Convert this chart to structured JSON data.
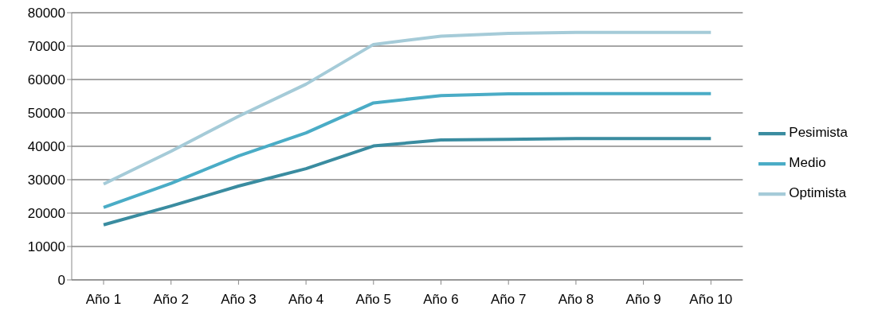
{
  "chart_data": {
    "type": "line",
    "categories": [
      "Año 1",
      "Año 2",
      "Año 3",
      "Año 4",
      "Año 5",
      "Año 6",
      "Año 7",
      "Año 8",
      "Año 9",
      "Año 10"
    ],
    "series": [
      {
        "name": "Pesimista",
        "color": "#3a8ca0",
        "values": [
          16500,
          22100,
          28100,
          33300,
          40100,
          41900,
          42100,
          42300,
          42300,
          42300
        ]
      },
      {
        "name": "Medio",
        "color": "#4aacc6",
        "values": [
          21700,
          28900,
          37100,
          44000,
          53000,
          55200,
          55700,
          55800,
          55800,
          55800
        ]
      },
      {
        "name": "Optimista",
        "color": "#a5cbd8",
        "values": [
          28700,
          38500,
          49000,
          58600,
          70500,
          73000,
          73800,
          74100,
          74100,
          74100
        ]
      }
    ],
    "ylim": [
      0,
      80000
    ],
    "yticks": [
      0,
      10000,
      20000,
      30000,
      40000,
      50000,
      60000,
      70000,
      80000
    ],
    "grid": "y",
    "legend": "right",
    "marker": "none",
    "line_style": "solid"
  }
}
